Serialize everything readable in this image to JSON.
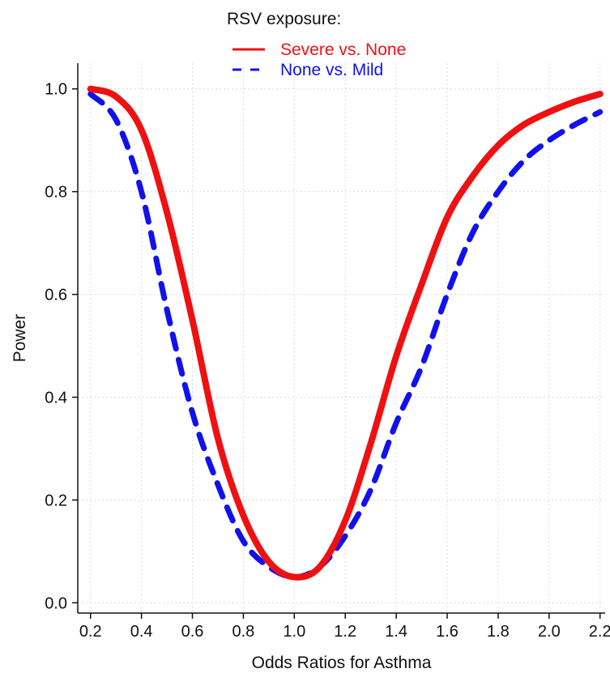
{
  "chart_data": {
    "type": "line",
    "title": "",
    "xlabel": "Odds Ratios for Asthma",
    "ylabel": "Power",
    "xlim": [
      0.15,
      2.22
    ],
    "ylim": [
      -0.02,
      1.05
    ],
    "xticks": [
      0.2,
      0.4,
      0.6,
      0.8,
      1.0,
      1.2,
      1.4,
      1.6,
      1.8,
      2.0,
      2.2
    ],
    "xtick_labels": [
      "0.2",
      "0.4",
      "0.6",
      "0.8",
      "1.0",
      "1.2",
      "1.4",
      "1.6",
      "1.8",
      "2.0",
      "2.2"
    ],
    "yticks": [
      0.0,
      0.2,
      0.4,
      0.6,
      0.8,
      1.0
    ],
    "ytick_labels": [
      "0.0",
      "0.2",
      "0.4",
      "0.6",
      "0.8",
      "1.0"
    ],
    "grid": true,
    "legend": {
      "title": "RSV exposure:",
      "position": "top"
    },
    "series": [
      {
        "name": "Severe vs. None",
        "color": "#ee1111",
        "style": "solid",
        "x": [
          0.2,
          0.3,
          0.4,
          0.5,
          0.6,
          0.7,
          0.8,
          0.9,
          1.0,
          1.1,
          1.2,
          1.3,
          1.4,
          1.5,
          1.6,
          1.7,
          1.8,
          1.9,
          2.0,
          2.1,
          2.2
        ],
        "y": [
          1.0,
          0.985,
          0.92,
          0.76,
          0.55,
          0.32,
          0.17,
          0.08,
          0.05,
          0.07,
          0.16,
          0.31,
          0.48,
          0.62,
          0.75,
          0.83,
          0.89,
          0.93,
          0.955,
          0.975,
          0.99
        ]
      },
      {
        "name": "None vs. Mild",
        "color": "#1111ee",
        "style": "dashed",
        "x": [
          0.2,
          0.3,
          0.4,
          0.5,
          0.6,
          0.7,
          0.8,
          0.9,
          1.0,
          1.1,
          1.2,
          1.3,
          1.4,
          1.5,
          1.6,
          1.7,
          1.8,
          1.9,
          2.0,
          2.1,
          2.2
        ],
        "y": [
          0.99,
          0.94,
          0.8,
          0.57,
          0.37,
          0.23,
          0.12,
          0.07,
          0.05,
          0.07,
          0.13,
          0.22,
          0.35,
          0.46,
          0.6,
          0.72,
          0.8,
          0.86,
          0.9,
          0.93,
          0.955
        ]
      }
    ]
  }
}
